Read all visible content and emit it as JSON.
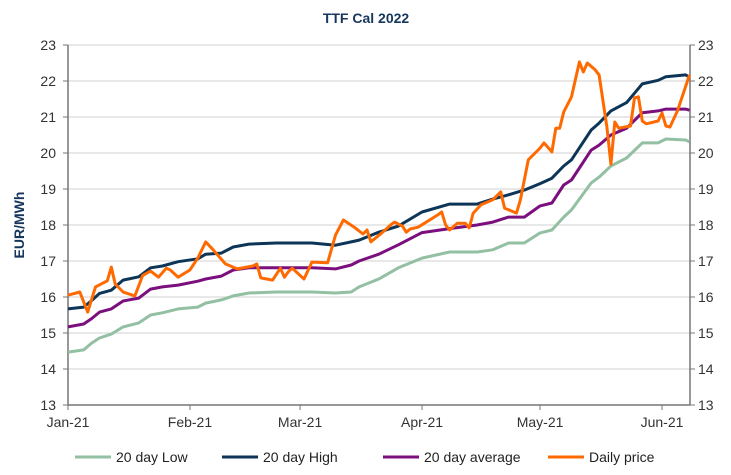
{
  "chart_data": {
    "type": "line",
    "title": "TTF Cal 2022",
    "xlabel": "",
    "ylabel": "EUR/MWh",
    "ylim": [
      13,
      23
    ],
    "yticks": [
      13,
      14,
      15,
      16,
      17,
      18,
      19,
      20,
      21,
      22,
      23
    ],
    "secondary_yticks": [
      13,
      14,
      15,
      16,
      17,
      18,
      19,
      20,
      21,
      22,
      23
    ],
    "xlim": [
      "2021-01-01",
      "2021-06-08"
    ],
    "xticks": [
      {
        "date": "2021-01-01",
        "label": "Jan-21"
      },
      {
        "date": "2021-02-01",
        "label": "Feb-21"
      },
      {
        "date": "2021-03-01",
        "label": "Mar-21"
      },
      {
        "date": "2021-04-01",
        "label": "Apr-21"
      },
      {
        "date": "2021-05-01",
        "label": "May-21"
      },
      {
        "date": "2021-06-01",
        "label": "Jun-21"
      }
    ],
    "grid": "horizontal",
    "legend_position": "bottom",
    "series": [
      {
        "name": "20 day Low",
        "color": "#93bfa2",
        "x": [
          "2021-01-01",
          "2021-01-05",
          "2021-01-07",
          "2021-01-09",
          "2021-01-12",
          "2021-01-15",
          "2021-01-19",
          "2021-01-22",
          "2021-01-25",
          "2021-01-29",
          "2021-02-03",
          "2021-02-05",
          "2021-02-09",
          "2021-02-12",
          "2021-02-16",
          "2021-02-23",
          "2021-03-04",
          "2021-03-10",
          "2021-03-14",
          "2021-03-16",
          "2021-03-21",
          "2021-03-26",
          "2021-04-01",
          "2021-04-08",
          "2021-04-15",
          "2021-04-19",
          "2021-04-23",
          "2021-04-27",
          "2021-05-01",
          "2021-05-04",
          "2021-05-07",
          "2021-05-09",
          "2021-05-14",
          "2021-05-16",
          "2021-05-19",
          "2021-05-23",
          "2021-05-27",
          "2021-05-31",
          "2021-06-02",
          "2021-06-07",
          "2021-06-08"
        ],
        "y": [
          14.47,
          14.53,
          14.72,
          14.86,
          14.97,
          15.17,
          15.28,
          15.5,
          15.56,
          15.67,
          15.72,
          15.83,
          15.92,
          16.03,
          16.11,
          16.14,
          16.14,
          16.11,
          16.14,
          16.28,
          16.5,
          16.81,
          17.08,
          17.25,
          17.25,
          17.31,
          17.5,
          17.5,
          17.78,
          17.86,
          18.22,
          18.42,
          19.17,
          19.33,
          19.64,
          19.86,
          20.28,
          20.28,
          20.39,
          20.36,
          20.31
        ]
      },
      {
        "name": "20 day High",
        "color": "#0d3557",
        "x": [
          "2021-01-01",
          "2021-01-05",
          "2021-01-07",
          "2021-01-09",
          "2021-01-12",
          "2021-01-15",
          "2021-01-19",
          "2021-01-22",
          "2021-01-25",
          "2021-01-29",
          "2021-02-03",
          "2021-02-05",
          "2021-02-09",
          "2021-02-12",
          "2021-02-16",
          "2021-02-23",
          "2021-03-04",
          "2021-03-10",
          "2021-03-14",
          "2021-03-16",
          "2021-03-21",
          "2021-03-26",
          "2021-04-01",
          "2021-04-08",
          "2021-04-15",
          "2021-04-19",
          "2021-04-23",
          "2021-04-27",
          "2021-05-01",
          "2021-05-04",
          "2021-05-07",
          "2021-05-09",
          "2021-05-14",
          "2021-05-16",
          "2021-05-19",
          "2021-05-23",
          "2021-05-27",
          "2021-05-31",
          "2021-06-02",
          "2021-06-07",
          "2021-06-08"
        ],
        "y": [
          15.67,
          15.72,
          15.9,
          16.1,
          16.19,
          16.47,
          16.56,
          16.81,
          16.86,
          16.98,
          17.06,
          17.19,
          17.22,
          17.39,
          17.47,
          17.5,
          17.5,
          17.44,
          17.53,
          17.58,
          17.8,
          17.97,
          18.36,
          18.58,
          18.58,
          18.72,
          18.84,
          18.97,
          19.15,
          19.3,
          19.64,
          19.81,
          20.64,
          20.83,
          21.17,
          21.4,
          21.92,
          22.02,
          22.12,
          22.17,
          22.11
        ]
      },
      {
        "name": "20 day average",
        "color": "#7b0f7e",
        "x": [
          "2021-01-01",
          "2021-01-05",
          "2021-01-07",
          "2021-01-09",
          "2021-01-12",
          "2021-01-15",
          "2021-01-19",
          "2021-01-22",
          "2021-01-25",
          "2021-01-29",
          "2021-02-03",
          "2021-02-05",
          "2021-02-09",
          "2021-02-12",
          "2021-02-16",
          "2021-02-23",
          "2021-03-04",
          "2021-03-10",
          "2021-03-14",
          "2021-03-16",
          "2021-03-21",
          "2021-03-26",
          "2021-04-01",
          "2021-04-08",
          "2021-04-15",
          "2021-04-19",
          "2021-04-23",
          "2021-04-27",
          "2021-05-01",
          "2021-05-04",
          "2021-05-07",
          "2021-05-09",
          "2021-05-14",
          "2021-05-16",
          "2021-05-19",
          "2021-05-23",
          "2021-05-27",
          "2021-05-31",
          "2021-06-02",
          "2021-06-07",
          "2021-06-08"
        ],
        "y": [
          15.17,
          15.25,
          15.4,
          15.58,
          15.67,
          15.89,
          15.97,
          16.22,
          16.28,
          16.33,
          16.44,
          16.5,
          16.58,
          16.75,
          16.81,
          16.81,
          16.81,
          16.78,
          16.89,
          17.0,
          17.19,
          17.45,
          17.79,
          17.9,
          18.0,
          18.08,
          18.22,
          18.22,
          18.53,
          18.61,
          19.11,
          19.25,
          20.08,
          20.22,
          20.5,
          20.69,
          21.12,
          21.17,
          21.22,
          21.22,
          21.19
        ]
      },
      {
        "name": "Daily price",
        "color": "#ff6a00",
        "x": [
          "2021-01-01",
          "2021-01-04",
          "2021-01-06",
          "2021-01-08",
          "2021-01-11",
          "2021-01-12",
          "2021-01-13",
          "2021-01-15",
          "2021-01-18",
          "2021-01-20",
          "2021-01-22",
          "2021-01-24",
          "2021-01-26",
          "2021-01-27",
          "2021-01-29",
          "2021-02-01",
          "2021-02-03",
          "2021-02-05",
          "2021-02-07",
          "2021-02-10",
          "2021-02-13",
          "2021-02-17",
          "2021-02-18",
          "2021-02-19",
          "2021-02-22",
          "2021-02-24",
          "2021-02-25",
          "2021-02-26",
          "2021-02-27",
          "2021-03-02",
          "2021-03-04",
          "2021-03-08",
          "2021-03-10",
          "2021-03-12",
          "2021-03-15",
          "2021-03-17",
          "2021-03-18",
          "2021-03-19",
          "2021-03-22",
          "2021-03-24",
          "2021-03-25",
          "2021-03-27",
          "2021-03-28",
          "2021-03-29",
          "2021-03-31",
          "2021-04-05",
          "2021-04-06",
          "2021-04-07",
          "2021-04-08",
          "2021-04-10",
          "2021-04-12",
          "2021-04-13",
          "2021-04-14",
          "2021-04-16",
          "2021-04-19",
          "2021-04-21",
          "2021-04-22",
          "2021-04-25",
          "2021-04-26",
          "2021-04-28",
          "2021-05-01",
          "2021-05-02",
          "2021-05-04",
          "2021-05-05",
          "2021-05-06",
          "2021-05-07",
          "2021-05-09",
          "2021-05-11",
          "2021-05-12",
          "2021-05-13",
          "2021-05-15",
          "2021-05-16",
          "2021-05-18",
          "2021-05-19",
          "2021-05-20",
          "2021-05-21",
          "2021-05-24",
          "2021-05-25",
          "2021-05-26",
          "2021-05-27",
          "2021-05-28",
          "2021-05-31",
          "2021-06-01",
          "2021-06-02",
          "2021-06-03",
          "2021-06-05",
          "2021-06-08"
        ],
        "y": [
          16.05,
          16.14,
          15.58,
          16.28,
          16.45,
          16.83,
          16.36,
          16.14,
          16.03,
          16.6,
          16.72,
          16.55,
          16.8,
          16.75,
          16.55,
          16.75,
          17.08,
          17.53,
          17.3,
          16.92,
          16.78,
          16.86,
          16.92,
          16.53,
          16.47,
          16.8,
          16.55,
          16.7,
          16.8,
          16.5,
          16.97,
          16.95,
          17.72,
          18.14,
          17.92,
          17.75,
          17.86,
          17.53,
          17.8,
          18.0,
          18.08,
          17.97,
          17.8,
          17.89,
          17.94,
          18.28,
          18.36,
          18.0,
          17.86,
          18.05,
          18.05,
          17.92,
          18.33,
          18.56,
          18.7,
          18.92,
          18.47,
          18.33,
          18.7,
          19.81,
          20.14,
          20.28,
          20.03,
          20.69,
          20.69,
          21.14,
          21.56,
          22.53,
          22.25,
          22.5,
          22.31,
          22.17,
          20.72,
          19.69,
          20.86,
          20.69,
          20.75,
          21.53,
          21.56,
          20.89,
          20.81,
          20.89,
          21.11,
          20.75,
          20.72,
          21.19,
          22.17
        ]
      }
    ]
  }
}
